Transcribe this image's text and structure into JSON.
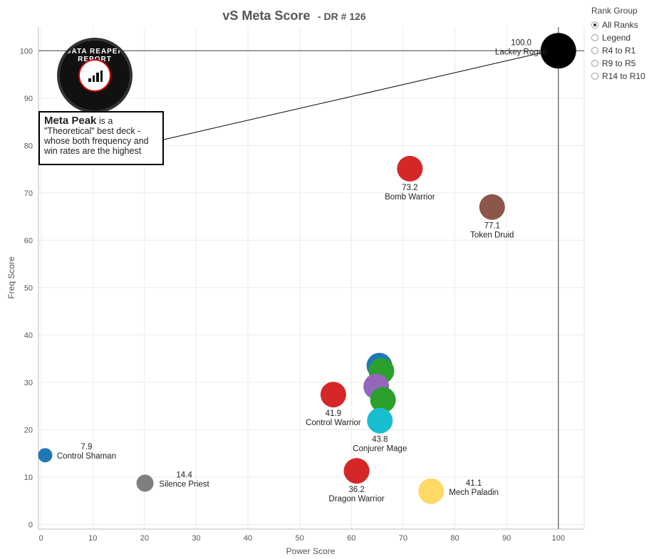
{
  "title": "vS Meta Score",
  "subtitle": "- DR # 126",
  "legend": {
    "title": "Rank Group",
    "options": [
      "All Ranks",
      "Legend",
      "R4 to R1",
      "R9 to R5",
      "R14 to R10"
    ],
    "selected": "All Ranks"
  },
  "logo_text": "DATA REAPER REPORT",
  "peak_box": {
    "bold": "Meta Peak",
    "text": "is a \"Theoretical\" best deck - whose both frequency and win rates are the highest"
  },
  "chart_data": {
    "type": "scatter",
    "title": "vS Meta Score - DR # 126",
    "xlabel": "Power Score",
    "ylabel": "Freq Score",
    "xlim": [
      -0.5,
      105
    ],
    "ylim": [
      -1,
      105
    ],
    "xticks": [
      0,
      10,
      20,
      30,
      40,
      50,
      60,
      70,
      80,
      90,
      100
    ],
    "yticks": [
      0,
      10,
      20,
      30,
      40,
      50,
      60,
      70,
      80,
      90,
      100
    ],
    "grid": true,
    "reference_lines": {
      "x": 100,
      "y": 100
    },
    "points": [
      {
        "x": 100,
        "y": 100,
        "value": "100.0",
        "name": "Lackey Rogue",
        "color": "#000000"
      },
      {
        "x": 71.3,
        "y": 75.1,
        "value": "73.2",
        "name": "Bomb Warrior",
        "color": "#d62728"
      },
      {
        "x": 87.2,
        "y": 67.0,
        "value": "77.1",
        "name": "Token Druid",
        "color": "#8c564b"
      },
      {
        "x": 65.4,
        "y": 33.5,
        "value": "",
        "name": "",
        "color": "#1f77b4"
      },
      {
        "x": 65.8,
        "y": 32.4,
        "value": "",
        "name": "",
        "color": "#2ca02c"
      },
      {
        "x": 64.8,
        "y": 29.1,
        "value": "",
        "name": "",
        "color": "#9467bd"
      },
      {
        "x": 66.1,
        "y": 26.3,
        "value": "",
        "name": "",
        "color": "#2ca02c"
      },
      {
        "x": 56.5,
        "y": 27.4,
        "value": "41.9",
        "name": "Control Warrior",
        "color": "#d62728"
      },
      {
        "x": 65.5,
        "y": 21.9,
        "value": "43.8",
        "name": "Conjurer Mage",
        "color": "#17becf"
      },
      {
        "x": 0.8,
        "y": 14.6,
        "value": "7.9",
        "name": "Control Shaman",
        "color": "#1f77b4"
      },
      {
        "x": 20.1,
        "y": 8.7,
        "value": "14.4",
        "name": "Silence Priest",
        "color": "#7f7f7f"
      },
      {
        "x": 61.0,
        "y": 11.3,
        "value": "36.2",
        "name": "Dragon Warrior",
        "color": "#d62728"
      },
      {
        "x": 75.4,
        "y": 7.0,
        "value": "41.1",
        "name": "Mech Paladin",
        "color": "#ffd966"
      }
    ]
  }
}
